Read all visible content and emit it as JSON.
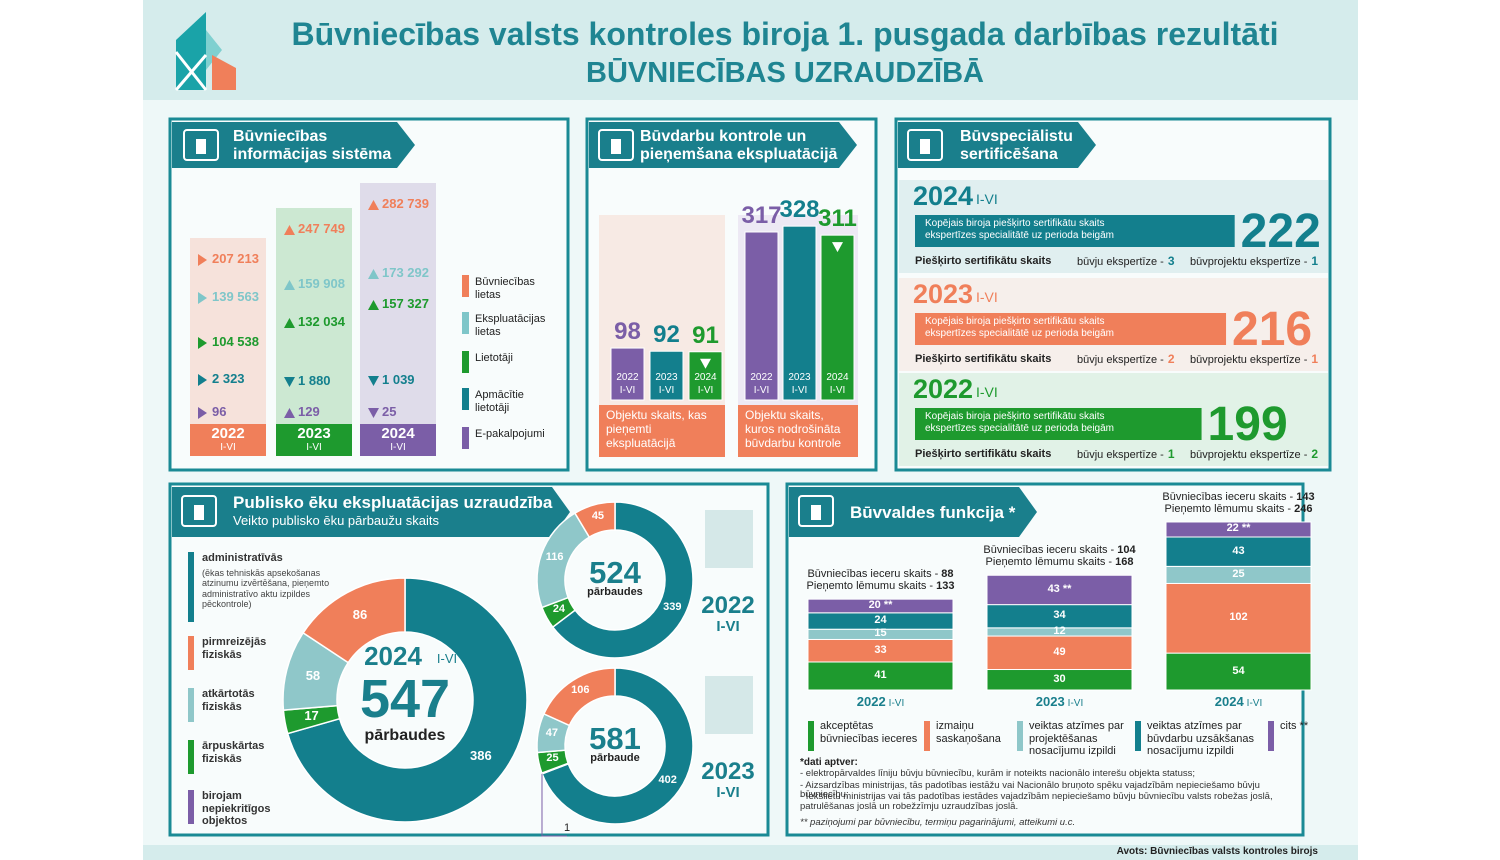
{
  "header": {
    "title": "Būvniecības valsts kontroles biroja 1. pusgada darbības rezultāti",
    "subtitle": "BŪVNIECĪBAS UZRAUDZĪBĀ"
  },
  "source": "Avots: Būvniecības valsts kontroles birojs",
  "chart_data": [
    {
      "type": "value-columns",
      "title": "Būvniecības informācijas sistēma",
      "categories": [
        "2022",
        "2023",
        "2024"
      ],
      "period": "I-VI",
      "category_colors": [
        "#f07f5a",
        "#1e9a2e",
        "#7b5ea7"
      ],
      "series": [
        {
          "name": "Būvniecības lietas",
          "color": "#f07f5a",
          "values": [
            207213,
            247749,
            282739
          ],
          "value_labels": [
            "207 213",
            "247 749",
            "282 739"
          ],
          "markers": [
            "right",
            "up",
            "up"
          ]
        },
        {
          "name": "Ekspluatācijas lietas",
          "color": "#7fc6c9",
          "values": [
            139563,
            159908,
            173292
          ],
          "value_labels": [
            "139 563",
            "159 908",
            "173 292"
          ],
          "markers": [
            "right",
            "up",
            "up"
          ]
        },
        {
          "name": "Lietotāji",
          "color": "#1e9a2e",
          "values": [
            104538,
            132034,
            157327
          ],
          "value_labels": [
            "104 538",
            "132 034",
            "157 327"
          ],
          "markers": [
            "right",
            "up",
            "up"
          ]
        },
        {
          "name": "Apmācītie lietotāji",
          "color": "#137f8d",
          "values": [
            2323,
            1880,
            1039
          ],
          "value_labels": [
            "2 323",
            "1 880",
            "1 039"
          ],
          "markers": [
            "right",
            "down",
            "down"
          ]
        },
        {
          "name": "E-pakalpojumi",
          "color": "#7b5ea7",
          "values": [
            96,
            129,
            25
          ],
          "markers": [
            "right",
            "up",
            "down"
          ]
        }
      ]
    },
    {
      "type": "grouped-bar",
      "title": "Būvdarbu kontrole un pieņemšana ekspluatācijā",
      "categories": [
        "Objektu skaits, kas pieņemti ekspluatācijā",
        "Objektu skaits, kuros nodrošināta būvdarbu kontrole"
      ],
      "period": "I-VI",
      "desc_color": "#f07f5a",
      "series": [
        {
          "name": "2022",
          "color": "#7b5ea7",
          "values": [
            98,
            317
          ]
        },
        {
          "name": "2023",
          "color": "#137f8d",
          "values": [
            92,
            328
          ]
        },
        {
          "name": "2024",
          "color": "#1e9a2e",
          "values": [
            91,
            311
          ],
          "marker": "down"
        }
      ]
    },
    {
      "type": "certificates",
      "title": "Būvspeciālistu sertificēšana",
      "period": "I-VI",
      "total_label": "Kopējais biroja piešķirto sertifikātu skaits ekspertīzes specialitātē uz perioda beigām",
      "count_label": "Piešķirto sertifikātu skaits",
      "kind_labels": [
        "būvju ekspertīze -",
        "būvprojektu ekspertīze -"
      ],
      "rows": [
        {
          "year": "2024",
          "color": "#137f8d",
          "total": 222,
          "counts": [
            3,
            1
          ]
        },
        {
          "year": "2023",
          "color": "#f07f5a",
          "total": 216,
          "counts": [
            2,
            1
          ]
        },
        {
          "year": "2022",
          "color": "#1e9a2e",
          "total": 199,
          "counts": [
            1,
            2
          ]
        }
      ]
    },
    {
      "type": "donut",
      "title": "Publisko ēku ekspluatācijas uzraudzība",
      "subtitle": "Veikto publisko ēku pārbaužu skaits",
      "period": "I-VI",
      "categories": [
        "administratīvās",
        "pirmreizējās fiziskās",
        "atkārtotās fiziskās",
        "ārpuskārtas fiziskās",
        "birojam nepiekritīgos objektos"
      ],
      "category_note": "(ēkas tehniskās apsekošanas atzinumu izvērtēšana, pieņemto administratīvo aktu izpildes pēckontrole)",
      "colors": [
        "#137f8d",
        "#f07f5a",
        "#8fc7c9",
        "#1e9a2e",
        "#7b5ea7"
      ],
      "series": [
        {
          "name": "2024",
          "values": [
            386,
            86,
            58,
            17,
            null
          ],
          "total": 547,
          "total_label": "pārbaudes"
        },
        {
          "name": "2022",
          "values": [
            339,
            45,
            116,
            24,
            null
          ],
          "total": 524,
          "total_label": "pārbaudes"
        },
        {
          "name": "2023",
          "values": [
            402,
            106,
            47,
            25,
            1
          ],
          "total": 581,
          "total_label": "pārbaude"
        }
      ]
    },
    {
      "type": "stacked-bar",
      "title": "Būvvaldes funkcija *",
      "categories": [
        "2022",
        "2023",
        "2024"
      ],
      "period": "I-VI",
      "series": [
        {
          "name": "akceptētas būvniecības ieceres",
          "color": "#1e9a2e",
          "values": [
            41,
            30,
            54
          ]
        },
        {
          "name": "izmaiņu saskaņošana",
          "color": "#f07f5a",
          "values": [
            33,
            49,
            102
          ]
        },
        {
          "name": "veiktas atzīmes par projektēšanas nosacījumu izpildi",
          "color": "#8fc7c9",
          "values": [
            15,
            12,
            25
          ]
        },
        {
          "name": "veiktas atzīmes par būvdarbu uzsākšanas nosacījumu izpildi",
          "color": "#137f8d",
          "values": [
            24,
            34,
            43
          ]
        },
        {
          "name": "cits **",
          "color": "#7b5ea7",
          "values": [
            20,
            43,
            22
          ],
          "value_labels": [
            "20 **",
            "43 **",
            "22 **"
          ]
        }
      ],
      "totals": [
        {
          "label": "Būvniecības ieceru skaits -",
          "values": [
            88,
            104,
            143
          ]
        },
        {
          "label": "Pieņemto lēmumu skaits -",
          "values": [
            133,
            168,
            246
          ]
        }
      ],
      "notes_title": "*dati aptver:",
      "notes": [
        "- elektropārvaldes līniju būvju būvniecību, kurām ir noteikts nacionālo interešu objekta statuss;",
        "- Aizsardzības ministrijas, tās padotības iestāžu vai Nacionālo bruņoto spēku vajadzībām nepieciešamo būvju būvniecību;",
        "- Iekšlietu ministrijas vai tās padotības iestādes vajadzībām nepieciešamo būvju būvniecību valsts robežas joslā, patrulēšanas joslā un robežzīmju uzraudzības joslā."
      ],
      "note2": "** paziņojumi par būvniecību, termiņu pagarinājumi, atteikumi u.c."
    }
  ]
}
